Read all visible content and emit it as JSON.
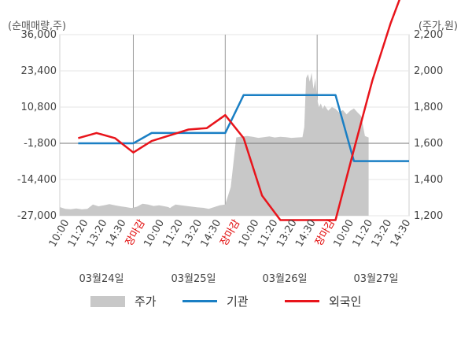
{
  "chart_data": {
    "type": "line",
    "title": "",
    "left_axis_unit": "(순매매량,주)",
    "right_axis_unit": "(주가,원)",
    "left_axis": {
      "ticks": [
        "36,000",
        "23,400",
        "10,800",
        "-1,800",
        "-14,400",
        "-27,000"
      ],
      "tick_values": [
        36000,
        23400,
        10800,
        -1800,
        -14400,
        -27000
      ],
      "range": [
        -27000,
        36000
      ]
    },
    "right_axis": {
      "ticks": [
        "2,200",
        "2,000",
        "1,800",
        "1,600",
        "1,400",
        "1,200"
      ],
      "tick_values": [
        2200,
        2000,
        1800,
        1600,
        1400,
        1200
      ],
      "range": [
        1200,
        2200
      ]
    },
    "x_ticks": [
      {
        "label": "10:00",
        "color": "#444444"
      },
      {
        "label": "11:20",
        "color": "#444444"
      },
      {
        "label": "13:20",
        "color": "#444444"
      },
      {
        "label": "14:30",
        "color": "#444444"
      },
      {
        "label": "장마감",
        "color": "#e00000"
      },
      {
        "label": "10:00",
        "color": "#444444"
      },
      {
        "label": "11:20",
        "color": "#444444"
      },
      {
        "label": "13:20",
        "color": "#444444"
      },
      {
        "label": "14:30",
        "color": "#444444"
      },
      {
        "label": "장마감",
        "color": "#e00000"
      },
      {
        "label": "10:00",
        "color": "#444444"
      },
      {
        "label": "11:20",
        "color": "#444444"
      },
      {
        "label": "13:20",
        "color": "#444444"
      },
      {
        "label": "14:30",
        "color": "#444444"
      },
      {
        "label": "장마감",
        "color": "#e00000"
      },
      {
        "label": "10:00",
        "color": "#444444"
      },
      {
        "label": "11:20",
        "color": "#444444"
      },
      {
        "label": "13:20",
        "color": "#444444"
      },
      {
        "label": "14:30",
        "color": "#444444"
      }
    ],
    "day_labels": [
      "03월24일",
      "03월25일",
      "03월26일",
      "03월27일"
    ],
    "series": [
      {
        "name": "주가",
        "kind": "area",
        "axis": "right",
        "color": "#c8c8c8",
        "x": [
          0,
          0.3,
          0.6,
          0.9,
          1.2,
          1.5,
          1.8,
          2.1,
          2.4,
          2.7,
          3.0,
          3.3,
          3.6,
          3.9,
          4.2,
          4.5,
          4.8,
          5.1,
          5.4,
          5.7,
          5.9,
          6.0,
          6.1,
          6.3,
          6.6,
          6.9,
          7.2,
          7.5,
          7.8,
          8.1,
          8.4,
          8.7,
          9.0,
          9.3,
          9.6,
          9.9,
          10.2,
          10.5,
          10.8,
          11.1,
          11.4,
          11.7,
          12.0,
          12.3,
          12.6,
          12.9,
          13.2,
          13.3,
          13.4,
          13.5,
          13.6,
          13.7,
          13.8,
          13.9,
          14.0,
          14.1,
          14.2,
          14.3,
          14.4,
          14.6,
          14.8,
          15.0,
          15.2,
          15.4,
          15.6,
          15.8,
          16.0,
          16.2,
          16.4,
          16.6,
          16.8
        ],
        "values": [
          1248,
          1238,
          1236,
          1240,
          1235,
          1238,
          1262,
          1252,
          1258,
          1264,
          1258,
          1252,
          1248,
          1242,
          1250,
          1266,
          1262,
          1254,
          1258,
          1252,
          1248,
          1242,
          1250,
          1262,
          1258,
          1254,
          1250,
          1246,
          1244,
          1238,
          1248,
          1258,
          1262,
          1358,
          1632,
          1638,
          1640,
          1636,
          1630,
          1634,
          1638,
          1632,
          1636,
          1634,
          1630,
          1632,
          1634,
          1690,
          1960,
          1982,
          1940,
          1990,
          1900,
          1960,
          1840,
          1800,
          1820,
          1790,
          1810,
          1780,
          1800,
          1790,
          1770,
          1784,
          1760,
          1780,
          1792,
          1770,
          1750,
          1640,
          1632
        ]
      },
      {
        "name": "기관",
        "kind": "line",
        "axis": "left",
        "color": "#1a7fc4",
        "x": [
          1,
          4,
          5,
          8,
          9,
          10,
          11,
          12,
          13,
          14,
          15,
          16,
          17,
          18,
          19
        ],
        "values": [
          -1800,
          -1800,
          1800,
          1800,
          1800,
          15000,
          15000,
          15000,
          15000,
          15000,
          15000,
          -8000,
          -8000,
          -8000,
          -8000
        ]
      },
      {
        "name": "외국인",
        "kind": "line",
        "axis": "left",
        "color": "#e8141b",
        "x": [
          1,
          2,
          3,
          4,
          5,
          6,
          7,
          8,
          9,
          10,
          11,
          12,
          13,
          14,
          15,
          16,
          17,
          18,
          19
        ],
        "values": [
          0,
          1800,
          0,
          -5000,
          -1000,
          1000,
          3000,
          3500,
          8000,
          0,
          -20000,
          -28500,
          -28500,
          -28500,
          -28500,
          -4000,
          20000,
          40000,
          57000
        ]
      }
    ],
    "legend_position": "bottom",
    "grid": true
  }
}
